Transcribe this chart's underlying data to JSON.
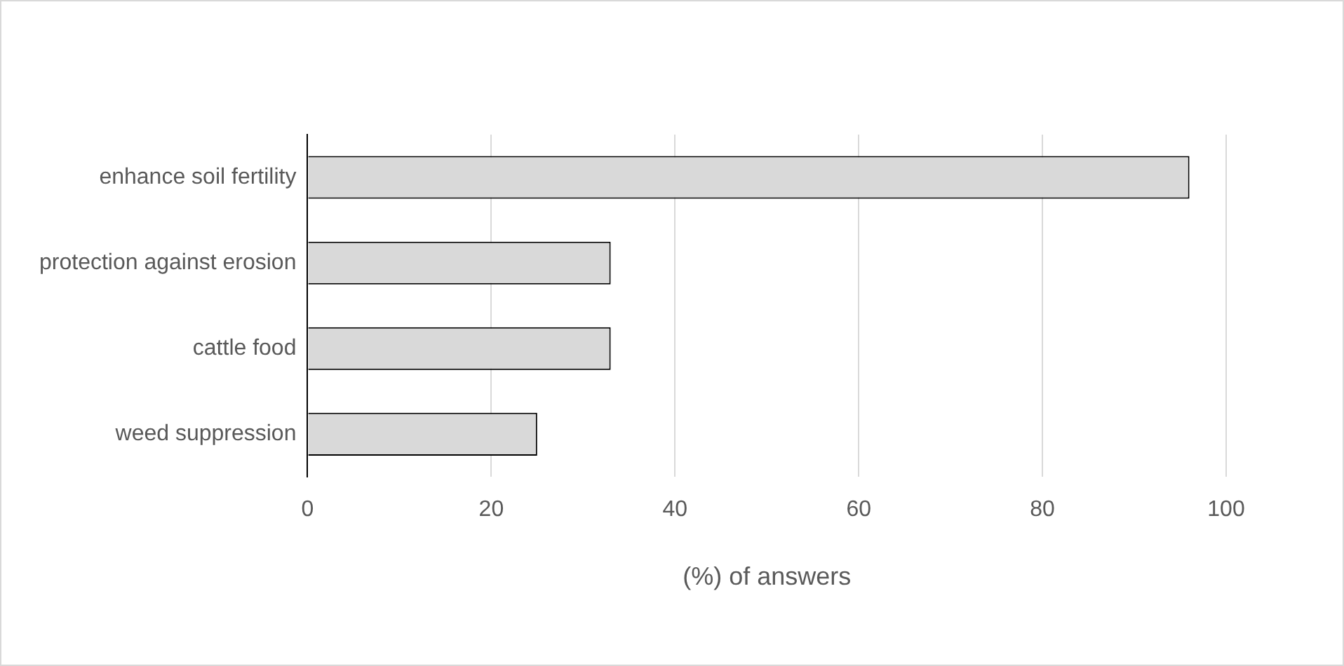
{
  "chart_data": {
    "type": "bar",
    "orientation": "horizontal",
    "xlabel": "(%) of answers",
    "categories": [
      "enhance soil fertility",
      "protection against erosion",
      "cattle food",
      "weed suppression"
    ],
    "values": [
      96,
      33,
      33,
      25
    ],
    "color": "#d9d9d9",
    "xlim": [
      0,
      100
    ],
    "xticks": [
      0,
      20,
      40,
      60,
      80,
      100
    ],
    "grid": "x",
    "legend": false
  }
}
